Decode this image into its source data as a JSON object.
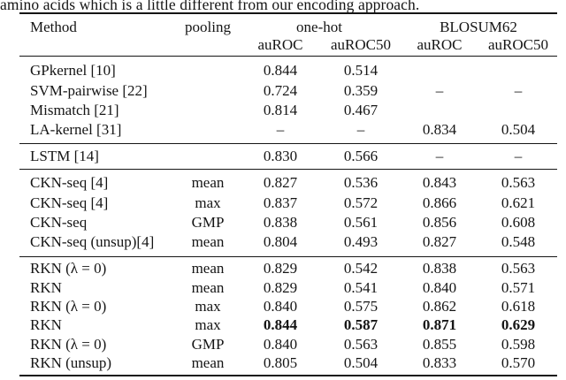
{
  "colors": {
    "background": "#ffffff",
    "text": "#151515",
    "rule": "#151515"
  },
  "intro_text": "amino acids which is a little different from our encoding approach.",
  "table": {
    "header": {
      "method": "Method",
      "pooling": "pooling",
      "group1": "one-hot",
      "group2": "BLOSUM62",
      "sub": [
        "auROC",
        "auROC50",
        "auROC",
        "auROC50"
      ]
    },
    "rows": [
      {
        "method": "GPkernel [10]",
        "pooling": "",
        "values": [
          "0.844",
          "0.514",
          "",
          ""
        ]
      },
      {
        "method": "SVM-pairwise [22]",
        "pooling": "",
        "values": [
          "0.724",
          "0.359",
          "–",
          "–"
        ]
      },
      {
        "method": "Mismatch [21]",
        "pooling": "",
        "values": [
          "0.814",
          "0.467",
          "",
          ""
        ]
      },
      {
        "method": "LA-kernel [31]",
        "pooling": "",
        "values": [
          "–",
          "–",
          "0.834",
          "0.504"
        ]
      },
      {
        "method": "LSTM [14]",
        "pooling": "",
        "values": [
          "0.830",
          "0.566",
          "–",
          "–"
        ]
      },
      {
        "method": "CKN-seq [4]",
        "pooling": "mean",
        "values": [
          "0.827",
          "0.536",
          "0.843",
          "0.563"
        ]
      },
      {
        "method": "CKN-seq [4]",
        "pooling": "max",
        "values": [
          "0.837",
          "0.572",
          "0.866",
          "0.621"
        ]
      },
      {
        "method": "CKN-seq",
        "pooling": "GMP",
        "values": [
          "0.838",
          "0.561",
          "0.856",
          "0.608"
        ]
      },
      {
        "method": "CKN-seq (unsup)[4]",
        "pooling": "mean",
        "values": [
          "0.804",
          "0.493",
          "0.827",
          "0.548"
        ]
      },
      {
        "method": "RKN (λ = 0)",
        "pooling": "mean",
        "values": [
          "0.829",
          "0.542",
          "0.838",
          "0.563"
        ]
      },
      {
        "method": "RKN",
        "pooling": "mean",
        "values": [
          "0.829",
          "0.541",
          "0.840",
          "0.571"
        ]
      },
      {
        "method": "RKN (λ = 0)",
        "pooling": "max",
        "values": [
          "0.840",
          "0.575",
          "0.862",
          "0.618"
        ]
      },
      {
        "method": "RKN",
        "pooling": "max",
        "values": [
          "0.844",
          "0.587",
          "0.871",
          "0.629"
        ],
        "bold": true
      },
      {
        "method": "RKN (λ = 0)",
        "pooling": "GMP",
        "values": [
          "0.840",
          "0.563",
          "0.855",
          "0.598"
        ]
      },
      {
        "method": "RKN (unsup)",
        "pooling": "mean",
        "values": [
          "0.805",
          "0.504",
          "0.833",
          "0.570"
        ]
      }
    ]
  }
}
